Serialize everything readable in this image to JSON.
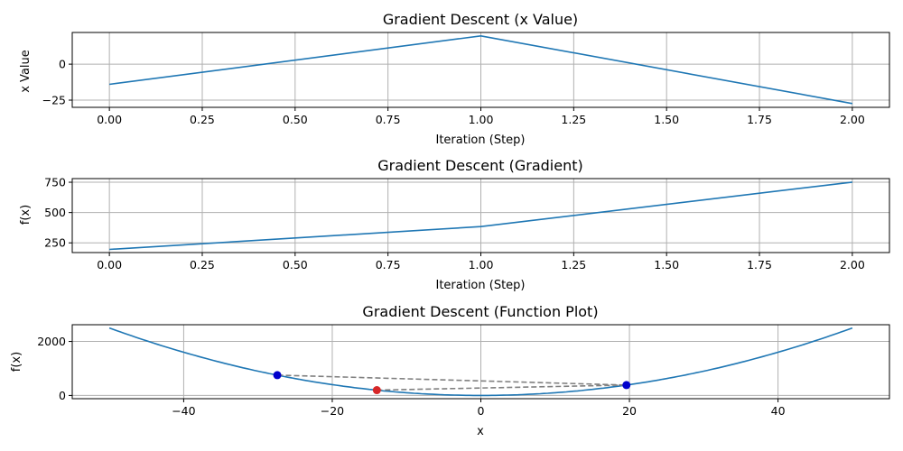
{
  "chart_data": [
    {
      "type": "line",
      "title": "Gradient Descent (x Value)",
      "xlabel": "Iteration (Step)",
      "ylabel": "x Value",
      "x": [
        0,
        1,
        2
      ],
      "series": [
        {
          "values": [
            -14,
            19.6,
            -27.4
          ]
        }
      ],
      "xlim": [
        -0.1,
        2.1
      ],
      "ylim": [
        -30,
        22
      ],
      "xticks": [
        0.0,
        0.25,
        0.5,
        0.75,
        1.0,
        1.25,
        1.5,
        1.75,
        2.0
      ],
      "xtick_labels": [
        "0.00",
        "0.25",
        "0.50",
        "0.75",
        "1.00",
        "1.25",
        "1.50",
        "1.75",
        "2.00"
      ],
      "yticks": [
        -25,
        0
      ],
      "ytick_labels": [
        "−25",
        "0"
      ],
      "grid": true,
      "color": "#1f77b4"
    },
    {
      "type": "line",
      "title": "Gradient Descent (Gradient)",
      "xlabel": "Iteration (Step)",
      "ylabel": "f(x)",
      "x": [
        0,
        1,
        2
      ],
      "series": [
        {
          "values": [
            196,
            384,
            751
          ]
        }
      ],
      "xlim": [
        -0.1,
        2.1
      ],
      "ylim": [
        170,
        780
      ],
      "xticks": [
        0.0,
        0.25,
        0.5,
        0.75,
        1.0,
        1.25,
        1.5,
        1.75,
        2.0
      ],
      "xtick_labels": [
        "0.00",
        "0.25",
        "0.50",
        "0.75",
        "1.00",
        "1.25",
        "1.50",
        "1.75",
        "2.00"
      ],
      "yticks": [
        250,
        500,
        750
      ],
      "ytick_labels": [
        "250",
        "500",
        "750"
      ],
      "grid": true,
      "color": "#1f77b4"
    },
    {
      "type": "line",
      "title": "Gradient Descent (Function Plot)",
      "xlabel": "x",
      "ylabel": "f(x)",
      "function": "x^2",
      "curve_domain": [
        -50,
        50
      ],
      "xlim": [
        -55,
        55
      ],
      "ylim": [
        -120,
        2620
      ],
      "xticks": [
        -40,
        -20,
        0,
        20,
        40
      ],
      "xtick_labels": [
        "−40",
        "−20",
        "0",
        "20",
        "40"
      ],
      "yticks": [
        0,
        2000
      ],
      "ytick_labels": [
        "0",
        "2000"
      ],
      "grid": true,
      "color": "#1f77b4",
      "descent_path": {
        "x": [
          -14,
          19.6,
          -27.4
        ],
        "y": [
          196,
          384,
          751
        ],
        "color": "#808080"
      },
      "points": [
        {
          "x": -14,
          "y": 196,
          "color": "#d62728"
        },
        {
          "x": 19.6,
          "y": 384,
          "color": "#0000cc"
        },
        {
          "x": -27.4,
          "y": 751,
          "color": "#0000cc"
        }
      ]
    }
  ]
}
